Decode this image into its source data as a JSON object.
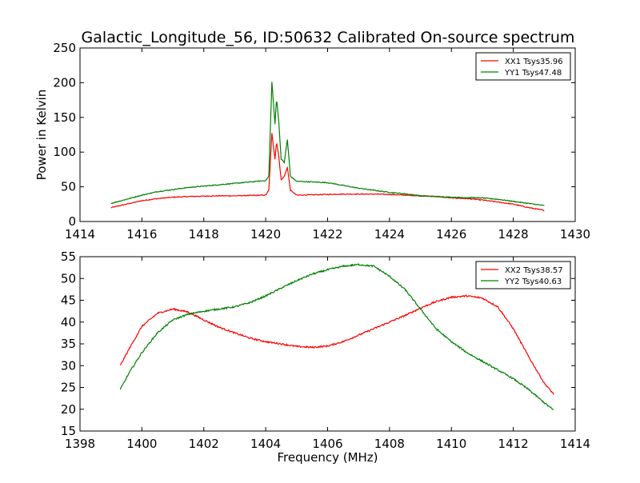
{
  "title": "Galactic_Longitude_56, ID:50632 Calibrated On-source spectrum",
  "chart_data": [
    {
      "type": "line",
      "ylabel": "Power in Kelvin",
      "xlabel": "",
      "xlim": [
        1414,
        1430
      ],
      "ylim": [
        0,
        250
      ],
      "xticks": [
        1414,
        1416,
        1418,
        1420,
        1422,
        1424,
        1426,
        1428,
        1430
      ],
      "yticks": [
        0,
        50,
        100,
        150,
        200,
        250
      ],
      "legend": "top-right",
      "grid": false,
      "series": [
        {
          "name": "XX1 Tsys35.96",
          "color": "#ff0000",
          "x": [
            1415.0,
            1415.5,
            1416.0,
            1416.5,
            1417.0,
            1417.5,
            1418.0,
            1418.5,
            1419.0,
            1419.5,
            1420.0,
            1420.1,
            1420.2,
            1420.3,
            1420.35,
            1420.42,
            1420.5,
            1420.6,
            1420.7,
            1420.8,
            1421.0,
            1421.5,
            1422.0,
            1422.5,
            1423.0,
            1423.5,
            1424.0,
            1424.5,
            1425.0,
            1425.5,
            1426.0,
            1426.5,
            1427.0,
            1427.5,
            1428.0,
            1428.5,
            1429.0
          ],
          "values": [
            20,
            25,
            30,
            33,
            35,
            36,
            36.5,
            37,
            37,
            37.5,
            38,
            45,
            127,
            90,
            115,
            95,
            60,
            65,
            78,
            45,
            38,
            38.5,
            39,
            39.5,
            39.5,
            39.5,
            39,
            38,
            37,
            36,
            34,
            33,
            31,
            28,
            25,
            20,
            16
          ]
        },
        {
          "name": "YY1 Tsys47.48",
          "color": "#008000",
          "x": [
            1415.0,
            1415.5,
            1416.0,
            1416.5,
            1417.0,
            1417.5,
            1418.0,
            1418.5,
            1419.0,
            1419.5,
            1420.0,
            1420.1,
            1420.2,
            1420.3,
            1420.35,
            1420.42,
            1420.5,
            1420.6,
            1420.7,
            1420.8,
            1421.0,
            1421.5,
            1422.0,
            1422.5,
            1423.0,
            1423.5,
            1424.0,
            1424.5,
            1425.0,
            1425.5,
            1426.0,
            1426.5,
            1427.0,
            1427.5,
            1428.0,
            1428.5,
            1429.0
          ],
          "values": [
            26,
            32,
            38,
            43,
            46,
            49,
            51,
            53,
            55,
            57,
            59,
            65,
            201,
            140,
            178,
            145,
            90,
            85,
            118,
            65,
            58,
            57,
            56,
            52,
            48,
            45,
            42,
            40,
            37,
            36,
            35,
            34.5,
            34,
            32,
            29,
            26,
            23
          ]
        }
      ]
    },
    {
      "type": "line",
      "ylabel": "",
      "xlabel": "Frequency (MHz)",
      "xlim": [
        1398,
        1414
      ],
      "ylim": [
        15,
        55
      ],
      "xticks": [
        1398,
        1400,
        1402,
        1404,
        1406,
        1408,
        1410,
        1412,
        1414
      ],
      "yticks": [
        15,
        20,
        25,
        30,
        35,
        40,
        45,
        50,
        55
      ],
      "legend": "top-right",
      "grid": false,
      "series": [
        {
          "name": "XX2 Tsys38.57",
          "color": "#ff0000",
          "x": [
            1399.3,
            1399.6,
            1400.0,
            1400.5,
            1401.0,
            1401.5,
            1402.0,
            1402.5,
            1403.0,
            1403.5,
            1404.0,
            1404.5,
            1405.0,
            1405.5,
            1406.0,
            1406.5,
            1407.0,
            1407.5,
            1408.0,
            1408.5,
            1409.0,
            1409.5,
            1410.0,
            1410.5,
            1411.0,
            1411.5,
            1412.0,
            1412.5,
            1413.0,
            1413.3
          ],
          "values": [
            30,
            34,
            39,
            42,
            43,
            42.3,
            40.5,
            38.8,
            37.5,
            36.3,
            35.5,
            35,
            34.4,
            34.2,
            34.5,
            35.5,
            37,
            38.5,
            40,
            41.5,
            43.2,
            44.7,
            45.7,
            46,
            45.5,
            43.5,
            38.5,
            32,
            26,
            23.5
          ]
        },
        {
          "name": "YY2 Tsys40.63",
          "color": "#008000",
          "x": [
            1399.3,
            1399.6,
            1400.0,
            1400.5,
            1401.0,
            1401.5,
            1402.0,
            1402.5,
            1403.0,
            1403.5,
            1404.0,
            1404.5,
            1405.0,
            1405.5,
            1406.0,
            1406.5,
            1407.0,
            1407.5,
            1408.0,
            1408.5,
            1409.0,
            1409.5,
            1410.0,
            1410.5,
            1411.0,
            1411.5,
            1412.0,
            1412.5,
            1413.0,
            1413.3
          ],
          "values": [
            24.5,
            28.5,
            33,
            37.5,
            40.5,
            41.8,
            42.5,
            43,
            43.5,
            44.5,
            46,
            47.8,
            49.5,
            51,
            52,
            52.8,
            53.2,
            52.8,
            50.5,
            47.5,
            43,
            38.5,
            35.5,
            33,
            31,
            29,
            27,
            24.5,
            21.5,
            19.8
          ]
        }
      ]
    }
  ]
}
